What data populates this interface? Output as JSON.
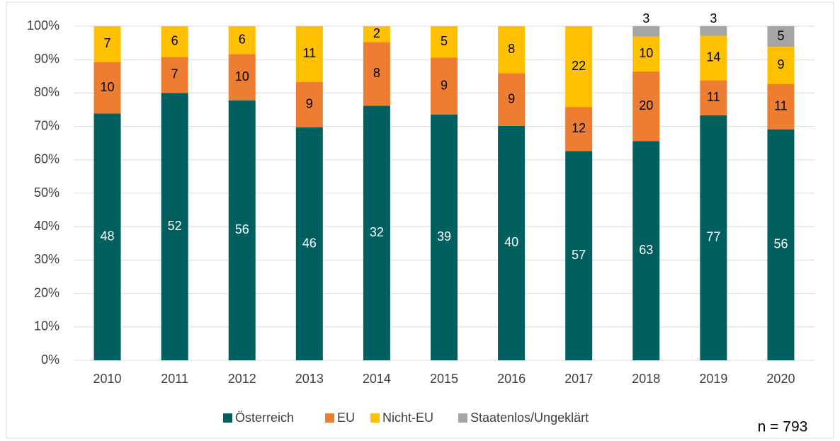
{
  "chart_data": {
    "type": "bar",
    "stacking": "percent",
    "categories": [
      "2010",
      "2011",
      "2012",
      "2013",
      "2014",
      "2015",
      "2016",
      "2017",
      "2018",
      "2019",
      "2020"
    ],
    "series": [
      {
        "name": "Österreich",
        "color": "#005f5f",
        "values": [
          48,
          52,
          56,
          46,
          32,
          39,
          40,
          57,
          63,
          77,
          56
        ]
      },
      {
        "name": "EU",
        "color": "#ed7d31",
        "values": [
          10,
          7,
          10,
          9,
          8,
          9,
          9,
          12,
          20,
          11,
          11
        ]
      },
      {
        "name": "Nicht-EU",
        "color": "#ffc000",
        "values": [
          7,
          6,
          6,
          11,
          2,
          5,
          8,
          22,
          10,
          14,
          9
        ]
      },
      {
        "name": "Staatenlos/Ungeklärt",
        "color": "#a5a5a5",
        "values": [
          null,
          null,
          null,
          null,
          null,
          null,
          null,
          null,
          3,
          3,
          5
        ]
      }
    ],
    "ylim": [
      0,
      100
    ],
    "yticks": [
      {
        "value": 0,
        "label": "0%"
      },
      {
        "value": 10,
        "label": "10%"
      },
      {
        "value": 20,
        "label": "20%"
      },
      {
        "value": 30,
        "label": "30%"
      },
      {
        "value": 40,
        "label": "40%"
      },
      {
        "value": 50,
        "label": "50%"
      },
      {
        "value": 60,
        "label": "60%"
      },
      {
        "value": 70,
        "label": "70%"
      },
      {
        "value": 80,
        "label": "80%"
      },
      {
        "value": 90,
        "label": "90%"
      },
      {
        "value": 100,
        "label": "100%"
      }
    ],
    "grid": true,
    "legend": "bottom",
    "annotation": "n = 793"
  }
}
